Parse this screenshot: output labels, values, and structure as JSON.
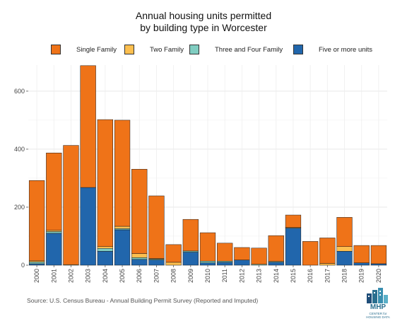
{
  "title_line1": "Annual housing units permitted",
  "title_line2": "by building type in Worcester",
  "source": "Source: U.S. Census Bureau - Annual Building Permit Survey (Reported and Imputed)",
  "logo": {
    "name": "MHP",
    "subtitle_line1": "CENTER for",
    "subtitle_line2": "HOUSING DATA"
  },
  "chart_data": {
    "type": "bar",
    "stacked": true,
    "title": "Annual housing units permitted by building type in Worcester",
    "xlabel": "",
    "ylabel": "",
    "ylim": [
      0,
      690
    ],
    "yticks": [
      0,
      200,
      400,
      600
    ],
    "grid": true,
    "legend_position": "top",
    "categories": [
      "2000",
      "2001",
      "2002",
      "2003",
      "2004",
      "2005",
      "2006",
      "2007",
      "2008",
      "2009",
      "2010",
      "2011",
      "2012",
      "2013",
      "2014",
      "2015",
      "2016",
      "2017",
      "2018",
      "2019",
      "2020"
    ],
    "series": [
      {
        "name": "Five or more units",
        "color": "#2166ac",
        "values": [
          5,
          110,
          0,
          268,
          48,
          122,
          20,
          18,
          0,
          45,
          8,
          10,
          18,
          0,
          10,
          128,
          0,
          0,
          48,
          8,
          5
        ]
      },
      {
        "name": "Three and Four Family",
        "color": "#80cdc1",
        "values": [
          6,
          6,
          0,
          0,
          10,
          4,
          6,
          3,
          0,
          4,
          6,
          4,
          0,
          3,
          3,
          0,
          0,
          0,
          0,
          0,
          0
        ]
      },
      {
        "name": "Two Family",
        "color": "#fdbf4f",
        "values": [
          4,
          4,
          2,
          0,
          6,
          8,
          14,
          2,
          10,
          0,
          0,
          0,
          0,
          0,
          0,
          2,
          0,
          6,
          16,
          0,
          0
        ]
      },
      {
        "name": "Single Family",
        "color": "#ef7318",
        "values": [
          277,
          267,
          411,
          420,
          438,
          366,
          291,
          216,
          61,
          109,
          98,
          62,
          43,
          56,
          89,
          43,
          82,
          88,
          101,
          60,
          63
        ]
      }
    ]
  }
}
